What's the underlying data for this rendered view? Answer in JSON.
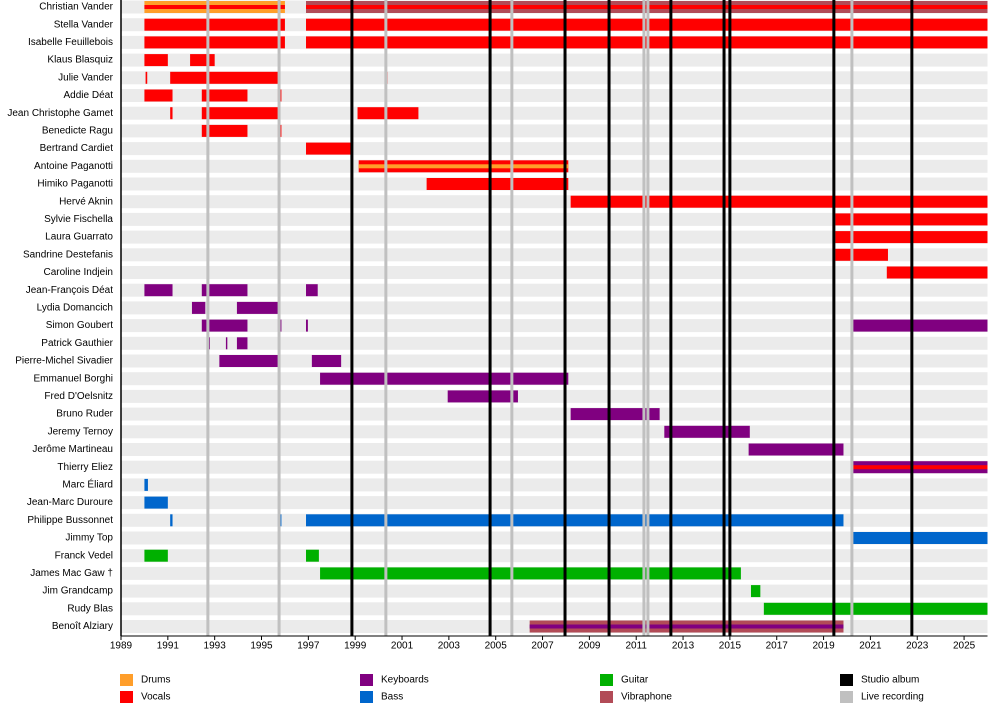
{
  "chart_data": {
    "type": "timeline",
    "xlim": [
      1989,
      2026
    ],
    "xticks": [
      1989,
      1991,
      1993,
      1995,
      1997,
      1999,
      2001,
      2003,
      2005,
      2007,
      2009,
      2011,
      2013,
      2015,
      2017,
      2019,
      2021,
      2023,
      2025
    ],
    "legend": [
      {
        "name": "Drums",
        "color": "#ff9e2a"
      },
      {
        "name": "Vocals",
        "color": "#ff0000"
      },
      {
        "name": "Keyboards",
        "color": "#800080"
      },
      {
        "name": "Bass",
        "color": "#0066cc"
      },
      {
        "name": "Guitar",
        "color": "#00b000"
      },
      {
        "name": "Vibraphone",
        "color": "#b24b57"
      },
      {
        "name": "Studio album",
        "color": "#000000"
      },
      {
        "name": "Live recording",
        "color": "#c0c0c0"
      }
    ],
    "events": [
      {
        "legend": 6,
        "x": [
          1998.86,
          2004.76,
          2007.96,
          2009.84,
          2012.48,
          2014.75,
          2015.0,
          2019.44,
          2022.77
        ]
      },
      {
        "legend": 7,
        "x": [
          1992.71,
          1995.75,
          2000.31,
          2005.69,
          2011.33,
          2011.5,
          2020.21
        ]
      }
    ],
    "members": [
      {
        "name": "Christian Vander",
        "bars": [
          {
            "role": 0,
            "start": 1990.0,
            "end": 1996.0,
            "secondary": 1
          },
          {
            "role": 5,
            "start": 1996.9,
            "end": 2026,
            "secondary": 1
          }
        ]
      },
      {
        "name": "Stella Vander",
        "bars": [
          {
            "role": 1,
            "start": 1990.0,
            "end": 1996.0
          },
          {
            "role": 1,
            "start": 1996.9,
            "end": 2026
          }
        ]
      },
      {
        "name": "Isabelle Feuillebois",
        "bars": [
          {
            "role": 1,
            "start": 1990.0,
            "end": 1996.0
          },
          {
            "role": 1,
            "start": 1996.9,
            "end": 2026
          }
        ]
      },
      {
        "name": "Klaus Blasquiz",
        "bars": [
          {
            "role": 1,
            "start": 1990.0,
            "end": 1991.0
          },
          {
            "role": 1,
            "start": 1991.95,
            "end": 1993.0
          }
        ]
      },
      {
        "name": "Julie Vander",
        "bars": [
          {
            "role": 1,
            "start": 1990.05,
            "end": 1990.12
          },
          {
            "role": 1,
            "start": 1991.1,
            "end": 1995.8
          },
          {
            "role": 1,
            "start": 2000.3,
            "end": 2000.38
          }
        ]
      },
      {
        "name": "Addie Déat",
        "bars": [
          {
            "role": 1,
            "start": 1990.0,
            "end": 1991.2
          },
          {
            "role": 1,
            "start": 1992.45,
            "end": 1994.4
          },
          {
            "role": 1,
            "start": 1995.7,
            "end": 1995.85
          }
        ]
      },
      {
        "name": "Jean Christophe Gamet",
        "bars": [
          {
            "role": 1,
            "start": 1991.1,
            "end": 1991.2
          },
          {
            "role": 1,
            "start": 1992.45,
            "end": 1995.8
          },
          {
            "role": 1,
            "start": 1999.1,
            "end": 2001.7
          }
        ]
      },
      {
        "name": "Benedicte Ragu",
        "bars": [
          {
            "role": 1,
            "start": 1992.45,
            "end": 1994.4
          },
          {
            "role": 1,
            "start": 1995.7,
            "end": 1995.85
          }
        ]
      },
      {
        "name": "Bertrand Cardiet",
        "bars": [
          {
            "role": 1,
            "start": 1996.9,
            "end": 1998.86
          }
        ]
      },
      {
        "name": "Antoine Paganotti",
        "bars": [
          {
            "role": 1,
            "start": 1999.15,
            "end": 2008.1,
            "secondary": 0
          }
        ]
      },
      {
        "name": "Himiko Paganotti",
        "bars": [
          {
            "role": 1,
            "start": 2002.05,
            "end": 2008.1
          }
        ]
      },
      {
        "name": "Hervé Aknin",
        "bars": [
          {
            "role": 1,
            "start": 2008.2,
            "end": 2026
          }
        ]
      },
      {
        "name": "Sylvie Fischella",
        "bars": [
          {
            "role": 1,
            "start": 2019.5,
            "end": 2026
          }
        ]
      },
      {
        "name": "Laura Guarrato",
        "bars": [
          {
            "role": 1,
            "start": 2019.5,
            "end": 2026
          }
        ]
      },
      {
        "name": "Sandrine Destefanis",
        "bars": [
          {
            "role": 1,
            "start": 2019.5,
            "end": 2021.75
          }
        ]
      },
      {
        "name": "Caroline Indjein",
        "bars": [
          {
            "role": 1,
            "start": 2021.7,
            "end": 2026
          }
        ]
      },
      {
        "name": "Jean-François Déat",
        "bars": [
          {
            "role": 2,
            "start": 1990.0,
            "end": 1991.2
          },
          {
            "role": 2,
            "start": 1992.45,
            "end": 1994.4
          },
          {
            "role": 2,
            "start": 1996.9,
            "end": 1997.4
          }
        ]
      },
      {
        "name": "Lydia Domancich",
        "bars": [
          {
            "role": 2,
            "start": 1992.03,
            "end": 1992.6
          },
          {
            "role": 2,
            "start": 1993.95,
            "end": 1995.8
          }
        ]
      },
      {
        "name": "Simon Goubert",
        "bars": [
          {
            "role": 2,
            "start": 1992.45,
            "end": 1994.4
          },
          {
            "role": 2,
            "start": 1995.7,
            "end": 1995.85
          },
          {
            "role": 2,
            "start": 1996.9,
            "end": 1996.98
          },
          {
            "role": 2,
            "start": 2020.15,
            "end": 2026
          }
        ]
      },
      {
        "name": "Patrick Gauthier",
        "bars": [
          {
            "role": 2,
            "start": 1992.7,
            "end": 1992.8
          },
          {
            "role": 2,
            "start": 1993.48,
            "end": 1993.54
          },
          {
            "role": 2,
            "start": 1993.95,
            "end": 1994.4
          }
        ]
      },
      {
        "name": "Pierre-Michel Sivadier",
        "bars": [
          {
            "role": 2,
            "start": 1993.2,
            "end": 1995.8
          },
          {
            "role": 2,
            "start": 1997.15,
            "end": 1998.4
          }
        ]
      },
      {
        "name": "Emmanuel Borghi",
        "bars": [
          {
            "role": 2,
            "start": 1997.5,
            "end": 2008.1
          }
        ]
      },
      {
        "name": "Fred D'Oelsnitz",
        "bars": [
          {
            "role": 2,
            "start": 2002.95,
            "end": 2005.95
          }
        ]
      },
      {
        "name": "Bruno Ruder",
        "bars": [
          {
            "role": 2,
            "start": 2008.2,
            "end": 2012.0
          }
        ]
      },
      {
        "name": "Jeremy Ternoy",
        "bars": [
          {
            "role": 2,
            "start": 2012.2,
            "end": 2015.85
          }
        ]
      },
      {
        "name": "Jerôme Martineau",
        "bars": [
          {
            "role": 2,
            "start": 2015.8,
            "end": 2019.85
          }
        ]
      },
      {
        "name": "Thierry Eliez",
        "bars": [
          {
            "role": 2,
            "start": 2020.15,
            "end": 2026,
            "secondary": 1
          }
        ]
      },
      {
        "name": "Marc Éliard",
        "bars": [
          {
            "role": 3,
            "start": 1990.0,
            "end": 1990.15
          }
        ]
      },
      {
        "name": "Jean-Marc Duroure",
        "bars": [
          {
            "role": 3,
            "start": 1990.0,
            "end": 1991.0
          }
        ]
      },
      {
        "name": "Philippe Bussonnet",
        "bars": [
          {
            "role": 3,
            "start": 1991.1,
            "end": 1991.2
          },
          {
            "role": 3,
            "start": 1995.7,
            "end": 1995.85
          },
          {
            "role": 3,
            "start": 1996.9,
            "end": 2019.85
          }
        ]
      },
      {
        "name": "Jimmy Top",
        "bars": [
          {
            "role": 3,
            "start": 2020.15,
            "end": 2026
          }
        ]
      },
      {
        "name": "Franck Vedel",
        "bars": [
          {
            "role": 4,
            "start": 1990.0,
            "end": 1991.0
          },
          {
            "role": 4,
            "start": 1996.9,
            "end": 1997.45
          }
        ]
      },
      {
        "name": "James Mac Gaw †",
        "bars": [
          {
            "role": 4,
            "start": 1997.5,
            "end": 2015.47
          }
        ]
      },
      {
        "name": "Jim Grandcamp",
        "bars": [
          {
            "role": 4,
            "start": 2015.9,
            "end": 2016.3
          }
        ]
      },
      {
        "name": "Rudy Blas",
        "bars": [
          {
            "role": 4,
            "start": 2016.45,
            "end": 2026
          }
        ]
      },
      {
        "name": "Benoît Alziary",
        "bars": [
          {
            "role": 5,
            "start": 2006.45,
            "end": 2019.85,
            "secondary": 2
          }
        ]
      }
    ]
  }
}
